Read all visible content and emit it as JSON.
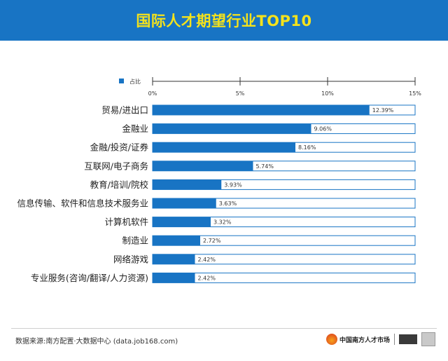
{
  "header": {
    "title": "国际人才期望行业TOP10"
  },
  "chart_data": {
    "type": "bar",
    "orientation": "horizontal",
    "title": "国际人才期望行业TOP10",
    "categories": [
      "贸易/进出口",
      "金融业",
      "金融/投资/证券",
      "互联网/电子商务",
      "教育/培训/院校",
      "信息传输、软件和信息技术服务业",
      "计算机软件",
      "制造业",
      "网络游戏",
      "专业服务(咨询/翻译/人力资源)"
    ],
    "series": [
      {
        "name": "占比",
        "values": [
          12.39,
          9.06,
          8.16,
          5.74,
          3.93,
          3.63,
          3.32,
          2.72,
          2.42,
          2.42
        ]
      }
    ],
    "value_labels": [
      "12.39%",
      "9.06%",
      "8.16%",
      "5.74%",
      "3.93%",
      "3.63%",
      "3.32%",
      "2.72%",
      "2.42%",
      "2.42%"
    ],
    "xlim": [
      0,
      15
    ],
    "xticks": [
      0,
      5,
      10,
      15
    ],
    "xtick_labels": [
      "0%",
      "5%",
      "10%",
      "15%"
    ],
    "legend_position": "top-left",
    "grid": false,
    "colors": {
      "bar": "#1874c4",
      "track_border": "#1874c4",
      "header_bg": "#1874c4",
      "title": "#f4e21c"
    }
  },
  "footer": {
    "source": "数据来源:南方配置·大数据中心 (data.job168.com)",
    "logo_text": "中国南方人才市场",
    "logo_icon": "sun-logo-icon"
  }
}
